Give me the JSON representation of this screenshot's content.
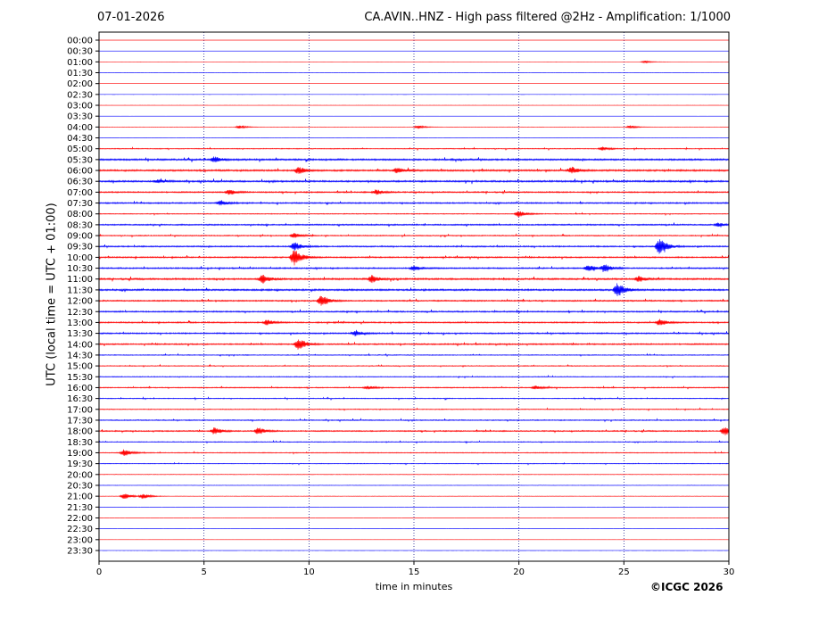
{
  "header": {
    "date": "07-01-2026",
    "title": "CA.AVIN..HNZ - High pass filtered @2Hz - Amplification: 1/1000"
  },
  "footer": {
    "copyright": "©ICGC 2026"
  },
  "chart_data": {
    "type": "line",
    "title": "CA.AVIN..HNZ - High pass filtered @2Hz - Amplification: 1/1000",
    "xlabel": "time in minutes",
    "ylabel": "UTC (local time = UTC + 01:00)",
    "xlim": [
      0,
      30
    ],
    "x_ticks": [
      0,
      5,
      10,
      15,
      20,
      25,
      30
    ],
    "grid": "vertical dotted lines at 5-minute ticks",
    "colors": {
      "red": "#ff0000",
      "blue": "#0000ff"
    },
    "traces": [
      {
        "label": "00:00",
        "color": "#ff0000",
        "noise": 0.05,
        "events": []
      },
      {
        "label": "00:30",
        "color": "#0000ff",
        "noise": 0.05,
        "events": []
      },
      {
        "label": "01:00",
        "color": "#ff0000",
        "noise": 0.05,
        "events": [
          {
            "t": 26.0,
            "amp": 1.5
          }
        ]
      },
      {
        "label": "01:30",
        "color": "#0000ff",
        "noise": 0.05,
        "events": []
      },
      {
        "label": "02:00",
        "color": "#ff0000",
        "noise": 0.05,
        "events": []
      },
      {
        "label": "02:30",
        "color": "#0000ff",
        "noise": 0.05,
        "events": []
      },
      {
        "label": "03:00",
        "color": "#ff0000",
        "noise": 0.05,
        "events": []
      },
      {
        "label": "03:30",
        "color": "#0000ff",
        "noise": 0.05,
        "events": []
      },
      {
        "label": "04:00",
        "color": "#ff0000",
        "noise": 0.15,
        "events": [
          {
            "t": 6.7,
            "amp": 2
          },
          {
            "t": 15.2,
            "amp": 2
          },
          {
            "t": 25.3,
            "amp": 2
          }
        ]
      },
      {
        "label": "04:30",
        "color": "#0000ff",
        "noise": 0.15,
        "events": []
      },
      {
        "label": "05:00",
        "color": "#ff0000",
        "noise": 0.5,
        "events": [
          {
            "t": 24.0,
            "amp": 2
          }
        ]
      },
      {
        "label": "05:30",
        "color": "#0000ff",
        "noise": 1.0,
        "events": [
          {
            "t": 5.5,
            "amp": 3
          }
        ]
      },
      {
        "label": "06:00",
        "color": "#ff0000",
        "noise": 1.0,
        "events": [
          {
            "t": 9.5,
            "amp": 4
          },
          {
            "t": 14.2,
            "amp": 3
          },
          {
            "t": 22.5,
            "amp": 4
          }
        ]
      },
      {
        "label": "06:30",
        "color": "#0000ff",
        "noise": 1.0,
        "events": [
          {
            "t": 2.8,
            "amp": 2
          }
        ]
      },
      {
        "label": "07:00",
        "color": "#ff0000",
        "noise": 0.8,
        "events": [
          {
            "t": 6.2,
            "amp": 3
          },
          {
            "t": 13.2,
            "amp": 3
          }
        ]
      },
      {
        "label": "07:30",
        "color": "#0000ff",
        "noise": 0.8,
        "events": [
          {
            "t": 5.8,
            "amp": 3
          }
        ]
      },
      {
        "label": "08:00",
        "color": "#ff0000",
        "noise": 0.5,
        "events": [
          {
            "t": 20.0,
            "amp": 4
          }
        ]
      },
      {
        "label": "08:30",
        "color": "#0000ff",
        "noise": 0.8,
        "events": [
          {
            "t": 29.5,
            "amp": 2
          }
        ]
      },
      {
        "label": "09:00",
        "color": "#ff0000",
        "noise": 0.6,
        "events": [
          {
            "t": 9.3,
            "amp": 3
          }
        ]
      },
      {
        "label": "09:30",
        "color": "#0000ff",
        "noise": 0.8,
        "events": [
          {
            "t": 9.3,
            "amp": 5
          },
          {
            "t": 26.7,
            "amp": 10
          }
        ]
      },
      {
        "label": "10:00",
        "color": "#ff0000",
        "noise": 0.8,
        "events": [
          {
            "t": 9.3,
            "amp": 10
          }
        ]
      },
      {
        "label": "10:30",
        "color": "#0000ff",
        "noise": 0.8,
        "events": [
          {
            "t": 15.0,
            "amp": 3
          },
          {
            "t": 23.3,
            "amp": 4
          },
          {
            "t": 24.1,
            "amp": 4
          }
        ]
      },
      {
        "label": "11:00",
        "color": "#ff0000",
        "noise": 1.0,
        "events": [
          {
            "t": 7.8,
            "amp": 5
          },
          {
            "t": 13.0,
            "amp": 4
          },
          {
            "t": 25.7,
            "amp": 3
          }
        ]
      },
      {
        "label": "11:30",
        "color": "#0000ff",
        "noise": 1.0,
        "events": [
          {
            "t": 24.7,
            "amp": 8
          }
        ]
      },
      {
        "label": "12:00",
        "color": "#ff0000",
        "noise": 0.8,
        "events": [
          {
            "t": 10.6,
            "amp": 7
          }
        ]
      },
      {
        "label": "12:30",
        "color": "#0000ff",
        "noise": 0.8,
        "events": []
      },
      {
        "label": "13:00",
        "color": "#ff0000",
        "noise": 0.8,
        "events": [
          {
            "t": 8.0,
            "amp": 3
          },
          {
            "t": 26.7,
            "amp": 4
          }
        ]
      },
      {
        "label": "13:30",
        "color": "#0000ff",
        "noise": 0.8,
        "events": [
          {
            "t": 12.2,
            "amp": 3
          }
        ]
      },
      {
        "label": "14:00",
        "color": "#ff0000",
        "noise": 0.8,
        "events": [
          {
            "t": 9.5,
            "amp": 7
          }
        ]
      },
      {
        "label": "14:30",
        "color": "#0000ff",
        "noise": 0.5,
        "events": []
      },
      {
        "label": "15:00",
        "color": "#ff0000",
        "noise": 0.5,
        "events": []
      },
      {
        "label": "15:30",
        "color": "#0000ff",
        "noise": 0.5,
        "events": []
      },
      {
        "label": "16:00",
        "color": "#ff0000",
        "noise": 0.6,
        "events": [
          {
            "t": 12.8,
            "amp": 2
          },
          {
            "t": 20.8,
            "amp": 2
          }
        ]
      },
      {
        "label": "16:30",
        "color": "#0000ff",
        "noise": 0.5,
        "events": []
      },
      {
        "label": "17:00",
        "color": "#ff0000",
        "noise": 0.5,
        "events": []
      },
      {
        "label": "17:30",
        "color": "#0000ff",
        "noise": 0.6,
        "events": []
      },
      {
        "label": "18:00",
        "color": "#ff0000",
        "noise": 0.7,
        "events": [
          {
            "t": 5.5,
            "amp": 4
          },
          {
            "t": 7.6,
            "amp": 4
          },
          {
            "t": 29.8,
            "amp": 5
          }
        ]
      },
      {
        "label": "18:30",
        "color": "#0000ff",
        "noise": 0.5,
        "events": []
      },
      {
        "label": "19:00",
        "color": "#ff0000",
        "noise": 0.5,
        "events": [
          {
            "t": 1.2,
            "amp": 4
          }
        ]
      },
      {
        "label": "19:30",
        "color": "#0000ff",
        "noise": 0.4,
        "events": []
      },
      {
        "label": "20:00",
        "color": "#ff0000",
        "noise": 0.3,
        "events": []
      },
      {
        "label": "20:30",
        "color": "#0000ff",
        "noise": 0.25,
        "events": []
      },
      {
        "label": "21:00",
        "color": "#ff0000",
        "noise": 0.2,
        "events": [
          {
            "t": 1.2,
            "amp": 4
          },
          {
            "t": 2.1,
            "amp": 3
          }
        ]
      },
      {
        "label": "21:30",
        "color": "#0000ff",
        "noise": 0.15,
        "events": []
      },
      {
        "label": "22:00",
        "color": "#ff0000",
        "noise": 0.1,
        "events": []
      },
      {
        "label": "22:30",
        "color": "#0000ff",
        "noise": 0.1,
        "events": []
      },
      {
        "label": "23:00",
        "color": "#ff0000",
        "noise": 0.05,
        "events": []
      },
      {
        "label": "23:30",
        "color": "#0000ff",
        "noise": 0.05,
        "events": []
      }
    ]
  }
}
